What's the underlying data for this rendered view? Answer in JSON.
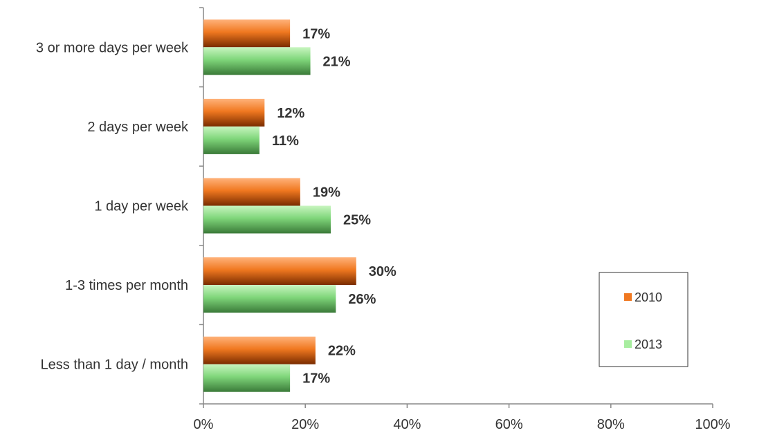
{
  "chart_data": {
    "type": "bar",
    "orientation": "horizontal",
    "categories": [
      "3 or more days per week",
      "2 days per week",
      "1 day per week",
      "1-3 times per month",
      "Less than 1 day / month"
    ],
    "series": [
      {
        "name": "2010",
        "values": [
          17,
          12,
          19,
          30,
          22
        ],
        "labels": [
          "17%",
          "12%",
          "19%",
          "30%",
          "22%"
        ],
        "color": "#f07820"
      },
      {
        "name": "2013",
        "values": [
          21,
          11,
          25,
          26,
          17
        ],
        "labels": [
          "21%",
          "11%",
          "25%",
          "26%",
          "17%"
        ],
        "color": "#7fd67a"
      }
    ],
    "xlim": [
      0,
      100
    ],
    "xticks": [
      "0%",
      "20%",
      "40%",
      "60%",
      "80%",
      "100%"
    ],
    "grid": false,
    "legend_position": "right"
  }
}
